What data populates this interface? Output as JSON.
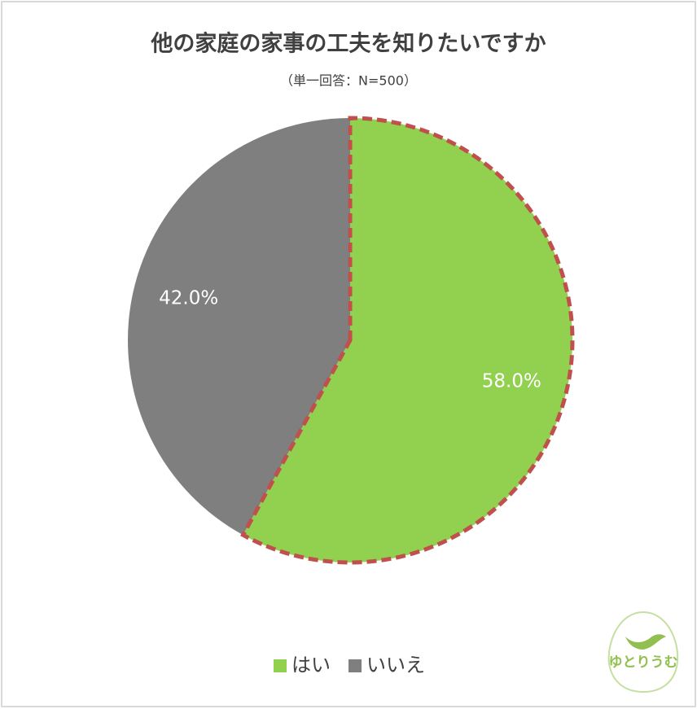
{
  "chart_data": {
    "type": "pie",
    "title": "他の家庭の家事の工夫を知りたいですか",
    "subtitle": "（単一回答：N=500）",
    "categories": [
      "はい",
      "いいえ"
    ],
    "values": [
      58.0,
      42.0
    ],
    "value_labels": [
      "58.0%",
      "42.0%"
    ],
    "colors": [
      "#92d050",
      "#7f7f7f"
    ],
    "legend": "bottom"
  },
  "logo": {
    "text": "ゆとりうむ"
  }
}
